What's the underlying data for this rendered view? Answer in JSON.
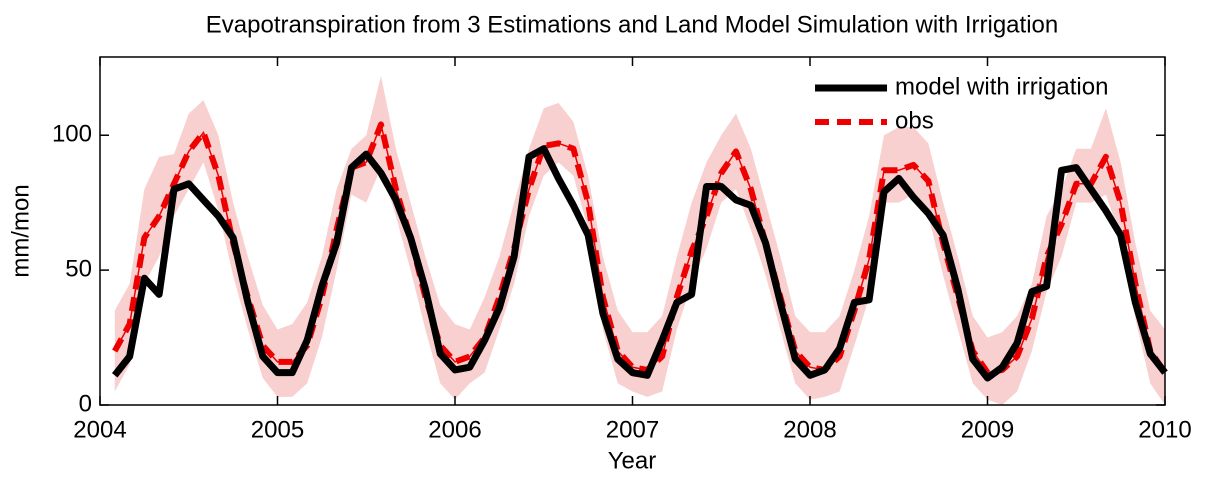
{
  "chart_data": {
    "type": "line",
    "title": "Evapotranspiration from 3 Estimations and Land Model Simulation with Irrigation",
    "x_label": "Year",
    "y_label": "mm/mon",
    "x": [
      2004.083,
      2004.167,
      2004.25,
      2004.333,
      2004.417,
      2004.5,
      2004.583,
      2004.667,
      2004.75,
      2004.833,
      2004.917,
      2005,
      2005.083,
      2005.167,
      2005.25,
      2005.333,
      2005.417,
      2005.5,
      2005.583,
      2005.667,
      2005.75,
      2005.833,
      2005.917,
      2006,
      2006.083,
      2006.167,
      2006.25,
      2006.333,
      2006.417,
      2006.5,
      2006.583,
      2006.667,
      2006.75,
      2006.833,
      2006.917,
      2007,
      2007.083,
      2007.167,
      2007.25,
      2007.333,
      2007.417,
      2007.5,
      2007.583,
      2007.667,
      2007.75,
      2007.833,
      2007.917,
      2008,
      2008.083,
      2008.167,
      2008.25,
      2008.333,
      2008.417,
      2008.5,
      2008.583,
      2008.667,
      2008.75,
      2008.833,
      2008.917,
      2009,
      2009.083,
      2009.167,
      2009.25,
      2009.333,
      2009.417,
      2009.5,
      2009.583,
      2009.667,
      2009.75,
      2009.833,
      2009.917,
      2010
    ],
    "band": {
      "color": "#f9d0d0",
      "lower": [
        5,
        15,
        45,
        55,
        70,
        80,
        90,
        72,
        48,
        28,
        10,
        3,
        3,
        8,
        25,
        50,
        78,
        75,
        88,
        70,
        50,
        28,
        8,
        2,
        8,
        12,
        28,
        45,
        70,
        85,
        90,
        85,
        65,
        28,
        8,
        5,
        3,
        5,
        28,
        45,
        58,
        75,
        80,
        65,
        48,
        28,
        8,
        2,
        3,
        5,
        22,
        40,
        75,
        75,
        78,
        70,
        48,
        28,
        8,
        2,
        0,
        5,
        20,
        42,
        55,
        75,
        75,
        78,
        62,
        32,
        8,
        0
      ],
      "upper": [
        35,
        45,
        80,
        92,
        93,
        108,
        113,
        100,
        75,
        55,
        37,
        28,
        30,
        38,
        55,
        80,
        95,
        100,
        122,
        95,
        75,
        55,
        37,
        30,
        28,
        40,
        55,
        75,
        95,
        110,
        112,
        105,
        85,
        55,
        35,
        27,
        27,
        33,
        55,
        75,
        90,
        100,
        108,
        95,
        75,
        55,
        33,
        27,
        27,
        33,
        50,
        70,
        100,
        103,
        103,
        97,
        75,
        55,
        33,
        25,
        27,
        33,
        45,
        70,
        80,
        95,
        95,
        110,
        90,
        60,
        35,
        28
      ]
    },
    "series": [
      {
        "name": "model with irrigation",
        "color": "#000000",
        "dashed": false,
        "values": [
          11,
          18,
          47,
          41,
          80,
          82,
          76,
          70,
          62,
          38,
          18,
          12,
          12,
          24,
          44,
          60,
          88,
          93,
          86,
          76,
          62,
          43,
          19,
          13,
          14,
          24,
          36,
          55,
          92,
          95,
          84,
          74,
          63,
          34,
          17,
          12,
          11,
          24,
          38,
          41,
          81,
          81,
          76,
          74,
          60,
          38,
          17,
          11,
          13,
          21,
          38,
          39,
          79,
          84,
          77,
          71,
          63,
          43,
          17,
          10,
          14,
          23,
          42,
          44,
          87,
          88,
          80,
          72,
          63,
          38,
          19,
          12
        ]
      },
      {
        "name": "obs",
        "color": "#ee0000",
        "dashed": true,
        "values": [
          20,
          30,
          62,
          70,
          82,
          94,
          101,
          85,
          60,
          40,
          22,
          16,
          16,
          22,
          40,
          65,
          88,
          90,
          104,
          80,
          62,
          40,
          22,
          16,
          18,
          25,
          40,
          58,
          80,
          96,
          97,
          95,
          75,
          40,
          20,
          14,
          13,
          18,
          40,
          57,
          70,
          86,
          94,
          80,
          60,
          40,
          20,
          14,
          13,
          18,
          35,
          54,
          87,
          87,
          89,
          83,
          60,
          40,
          20,
          12,
          13,
          18,
          32,
          55,
          67,
          82,
          82,
          92,
          75,
          45,
          20,
          12
        ]
      }
    ],
    "xlim": [
      2004,
      2010
    ],
    "xticks": [
      2004,
      2005,
      2006,
      2007,
      2008,
      2009,
      2010
    ],
    "ylim": [
      0,
      129
    ],
    "yticks": [
      0,
      50,
      100
    ],
    "legend": "upper right"
  }
}
